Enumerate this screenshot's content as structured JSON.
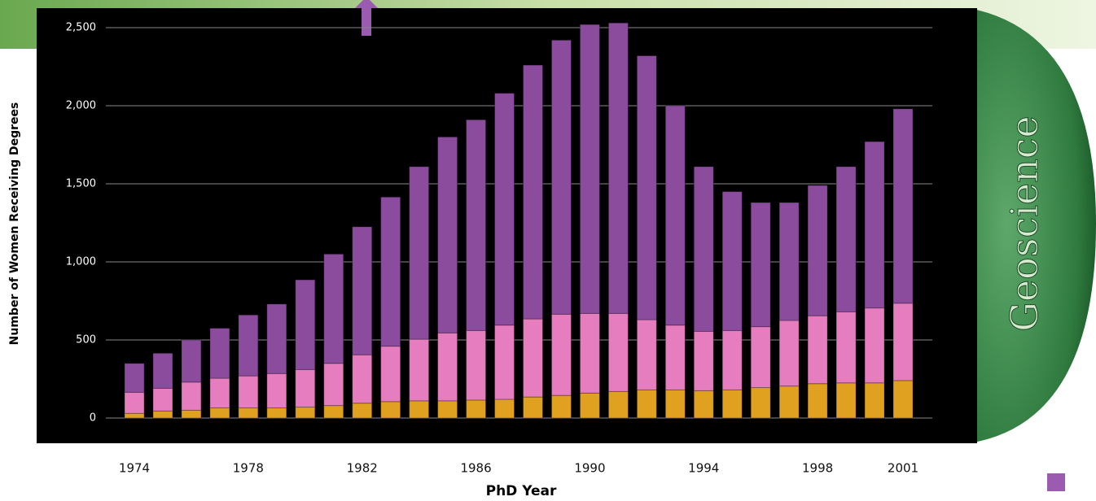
{
  "chart_data": {
    "type": "stacked_bar",
    "annotation": "Geoscience",
    "x_label": "PhD Year",
    "y_label": "Number of Women Receiving Degrees",
    "categories": [
      "1974",
      null,
      null,
      null,
      "1978",
      null,
      null,
      null,
      "1982",
      null,
      null,
      null,
      "1986",
      null,
      null,
      null,
      "1990",
      null,
      null,
      null,
      "1994",
      null,
      null,
      null,
      "1998",
      null,
      null,
      "2001"
    ],
    "series": [
      {
        "color": "#e0a020",
        "values": [
          30,
          45,
          50,
          65,
          65,
          65,
          70,
          80,
          95,
          105,
          110,
          110,
          115,
          120,
          135,
          145,
          160,
          170,
          180,
          180,
          175,
          180,
          195,
          205,
          220,
          225,
          225,
          240
        ]
      },
      {
        "color": "#e67dbf",
        "values": [
          135,
          145,
          180,
          190,
          205,
          220,
          240,
          270,
          310,
          355,
          395,
          435,
          445,
          475,
          500,
          520,
          510,
          500,
          450,
          415,
          380,
          380,
          390,
          420,
          435,
          455,
          480,
          495
        ]
      },
      {
        "color": "#8c4c9e",
        "values": [
          185,
          225,
          270,
          320,
          390,
          445,
          575,
          700,
          820,
          955,
          1105,
          1255,
          1350,
          1485,
          1625,
          1755,
          1850,
          1860,
          1690,
          1405,
          1055,
          890,
          795,
          755,
          835,
          930,
          1065,
          1245
        ]
      }
    ],
    "ylim": [
      0,
      2500
    ],
    "yticks": [
      0,
      500,
      {
        "value": 1000,
        "label": "1,000"
      },
      {
        "value": 1500,
        "label": "1,500"
      },
      {
        "value": 2000,
        "label": "2,000"
      },
      {
        "value": 2500,
        "label": "2,500"
      }
    ],
    "grid": true
  }
}
